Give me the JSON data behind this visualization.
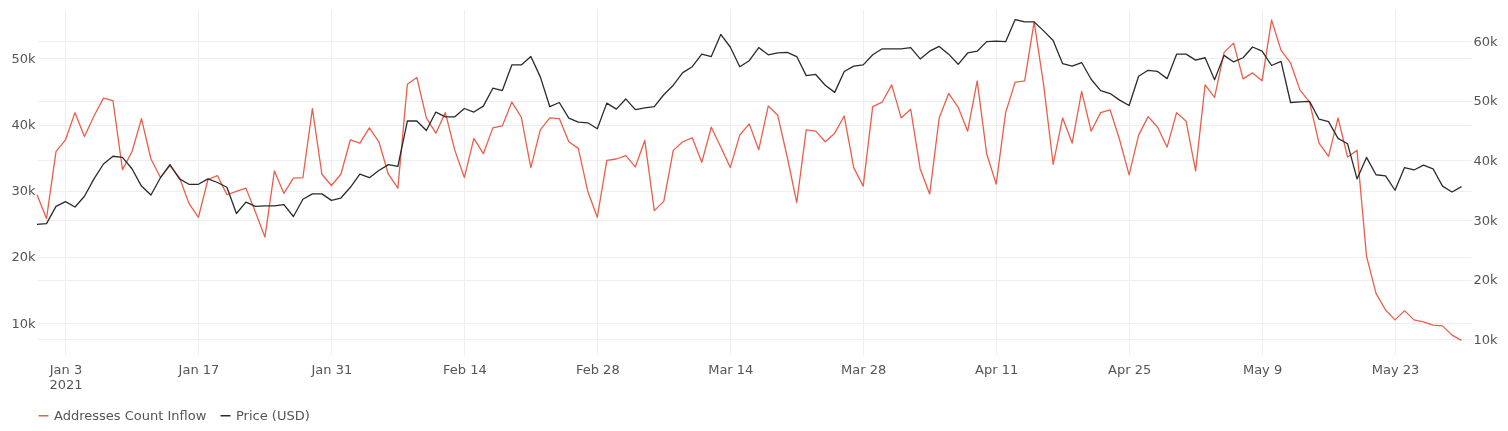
{
  "chart_data": {
    "type": "line",
    "x": [
      "2020-12-31",
      "2021-01-01",
      "2021-01-02",
      "2021-01-03",
      "2021-01-04",
      "2021-01-05",
      "2021-01-06",
      "2021-01-07",
      "2021-01-08",
      "2021-01-09",
      "2021-01-10",
      "2021-01-11",
      "2021-01-12",
      "2021-01-13",
      "2021-01-14",
      "2021-01-15",
      "2021-01-16",
      "2021-01-17",
      "2021-01-18",
      "2021-01-19",
      "2021-01-20",
      "2021-01-21",
      "2021-01-22",
      "2021-01-23",
      "2021-01-24",
      "2021-01-25",
      "2021-01-26",
      "2021-01-27",
      "2021-01-28",
      "2021-01-29",
      "2021-01-30",
      "2021-01-31",
      "2021-02-01",
      "2021-02-02",
      "2021-02-03",
      "2021-02-04",
      "2021-02-05",
      "2021-02-06",
      "2021-02-07",
      "2021-02-08",
      "2021-02-09",
      "2021-02-10",
      "2021-02-11",
      "2021-02-12",
      "2021-02-13",
      "2021-02-14",
      "2021-02-15",
      "2021-02-16",
      "2021-02-17",
      "2021-02-18",
      "2021-02-19",
      "2021-02-20",
      "2021-02-21",
      "2021-02-22",
      "2021-02-23",
      "2021-02-24",
      "2021-02-25",
      "2021-02-26",
      "2021-02-27",
      "2021-02-28",
      "2021-03-01",
      "2021-03-02",
      "2021-03-03",
      "2021-03-04",
      "2021-03-05",
      "2021-03-06",
      "2021-03-07",
      "2021-03-08",
      "2021-03-09",
      "2021-03-10",
      "2021-03-11",
      "2021-03-12",
      "2021-03-13",
      "2021-03-14",
      "2021-03-15",
      "2021-03-16",
      "2021-03-17",
      "2021-03-18",
      "2021-03-19",
      "2021-03-20",
      "2021-03-21",
      "2021-03-22",
      "2021-03-23",
      "2021-03-24",
      "2021-03-25",
      "2021-03-26",
      "2021-03-27",
      "2021-03-28",
      "2021-03-29",
      "2021-03-30",
      "2021-03-31",
      "2021-04-01",
      "2021-04-02",
      "2021-04-03",
      "2021-04-04",
      "2021-04-05",
      "2021-04-06",
      "2021-04-07",
      "2021-04-08",
      "2021-04-09",
      "2021-04-10",
      "2021-04-11",
      "2021-04-12",
      "2021-04-13",
      "2021-04-14",
      "2021-04-15",
      "2021-04-16",
      "2021-04-17",
      "2021-04-18",
      "2021-04-19",
      "2021-04-20",
      "2021-04-21",
      "2021-04-22",
      "2021-04-23",
      "2021-04-24",
      "2021-04-25",
      "2021-04-26",
      "2021-04-27",
      "2021-04-28",
      "2021-04-29",
      "2021-04-30",
      "2021-05-01",
      "2021-05-02",
      "2021-05-03",
      "2021-05-04",
      "2021-05-05",
      "2021-05-06",
      "2021-05-07",
      "2021-05-08",
      "2021-05-09",
      "2021-05-10",
      "2021-05-11",
      "2021-05-12",
      "2021-05-13",
      "2021-05-14",
      "2021-05-15",
      "2021-05-16",
      "2021-05-17",
      "2021-05-18",
      "2021-05-19",
      "2021-05-20",
      "2021-05-21",
      "2021-05-22",
      "2021-05-23",
      "2021-05-24",
      "2021-05-25",
      "2021-05-26",
      "2021-05-27",
      "2021-05-28",
      "2021-05-29",
      "2021-05-30"
    ],
    "series": [
      {
        "name": "Addresses Count Inflow",
        "color": "#e8604c",
        "axis": "y",
        "values": [
          29400,
          25800,
          35900,
          37700,
          41800,
          38200,
          41300,
          44000,
          43600,
          33200,
          35900,
          40900,
          34800,
          32000,
          33800,
          32000,
          28100,
          26000,
          31700,
          32300,
          29400,
          29900,
          30400,
          26800,
          23000,
          33000,
          29600,
          31900,
          32000,
          42400,
          32500,
          30800,
          32500,
          37700,
          37200,
          39500,
          37400,
          32500,
          30400,
          46100,
          47100,
          41000,
          38700,
          41800,
          36100,
          32000,
          37900,
          35600,
          39500,
          39800,
          43400,
          41100,
          33500,
          39200,
          41000,
          40900,
          37400,
          36400,
          29900,
          26000,
          34600,
          34800,
          35300,
          33600,
          37600,
          27000,
          28400,
          36100,
          37400,
          38000,
          34300,
          39600,
          36600,
          33500,
          38400,
          40100,
          36200,
          42800,
          41400,
          35100,
          28200,
          39200,
          39000,
          37400,
          38700,
          41300,
          33500,
          30700,
          42700,
          43400,
          46000,
          41000,
          42300,
          33300,
          29500,
          41000,
          44700,
          42600,
          39000,
          46600,
          35600,
          31000,
          41800,
          46400,
          46600,
          55500,
          46000,
          34000,
          41000,
          37200,
          45000,
          39000,
          41800,
          42200,
          37700,
          32400,
          38400,
          41200,
          39600,
          36600,
          41800,
          40500,
          33000,
          46000,
          44100,
          50900,
          52300,
          46900,
          47800,
          46600,
          55800,
          51200,
          49300,
          45200,
          43400,
          37200,
          35200,
          41000,
          35100,
          36100,
          20100,
          14500,
          12000,
          10500,
          11900,
          10500,
          10200,
          9700,
          9600,
          8200,
          7400
        ]
      },
      {
        "name": "Price (USD)",
        "color": "#2b2b2b",
        "axis": "y2",
        "values": [
          29300,
          29400,
          32300,
          33100,
          32200,
          34000,
          36900,
          39400,
          40700,
          40500,
          38600,
          35700,
          34200,
          37100,
          39300,
          36900,
          36000,
          36000,
          36900,
          36300,
          35500,
          31100,
          33000,
          32300,
          32400,
          32400,
          32600,
          30600,
          33500,
          34400,
          34400,
          33300,
          33700,
          35500,
          37700,
          37100,
          38300,
          39300,
          39000,
          46600,
          46600,
          45000,
          48100,
          47300,
          47300,
          48700,
          48100,
          49100,
          52100,
          51700,
          56000,
          56000,
          57400,
          54000,
          49000,
          49700,
          47100,
          46400,
          46300,
          45300,
          49600,
          48600,
          50300,
          48500,
          48800,
          49000,
          51000,
          52600,
          54700,
          55700,
          57800,
          57400,
          61100,
          59000,
          55700,
          56700,
          58900,
          57700,
          58000,
          58100,
          57400,
          54200,
          54400,
          52600,
          51400,
          54900,
          55800,
          56000,
          57700,
          58700,
          58700,
          58700,
          58900,
          57000,
          58300,
          59100,
          57800,
          56100,
          58000,
          58300,
          59900,
          60000,
          59900,
          63600,
          63200,
          63200,
          61700,
          60100,
          56200,
          55800,
          56400,
          53600,
          51700,
          51200,
          50100,
          49200,
          54100,
          55100,
          54900,
          53700,
          57800,
          57800,
          56800,
          57200,
          53500,
          57600,
          56500,
          57200,
          59000,
          58300,
          55900,
          56600,
          49700,
          49800,
          49900,
          46900,
          46500,
          43700,
          42800,
          36900,
          40500,
          37600,
          37400,
          35000,
          38800,
          38400,
          39200,
          38600,
          35700,
          34700,
          35600
        ]
      }
    ],
    "xlim": [
      "2020-12-31",
      "2021-05-31"
    ],
    "xticks": [
      {
        "value": "2021-01-03",
        "label": "Jan 3\n2021"
      },
      {
        "value": "2021-01-17",
        "label": "Jan 17"
      },
      {
        "value": "2021-01-31",
        "label": "Jan 31"
      },
      {
        "value": "2021-02-14",
        "label": "Feb 14"
      },
      {
        "value": "2021-02-28",
        "label": "Feb 28"
      },
      {
        "value": "2021-03-14",
        "label": "Mar 14"
      },
      {
        "value": "2021-03-28",
        "label": "Mar 28"
      },
      {
        "value": "2021-04-11",
        "label": "Apr 11"
      },
      {
        "value": "2021-04-25",
        "label": "Apr 25"
      },
      {
        "value": "2021-05-09",
        "label": "May 9"
      },
      {
        "value": "2021-05-23",
        "label": "May 23"
      }
    ],
    "ylim": [
      5200,
      57300
    ],
    "yticks": [
      {
        "value": 10000,
        "label": "10k"
      },
      {
        "value": 20000,
        "label": "20k"
      },
      {
        "value": 30000,
        "label": "30k"
      },
      {
        "value": 40000,
        "label": "40k"
      },
      {
        "value": 50000,
        "label": "50k"
      }
    ],
    "y2lim": [
      7400,
      65200
    ],
    "y2ticks": [
      {
        "value": 10000,
        "label": "10k"
      },
      {
        "value": 20000,
        "label": "20k"
      },
      {
        "value": 30000,
        "label": "30k"
      },
      {
        "value": 40000,
        "label": "40k"
      },
      {
        "value": 50000,
        "label": "50k"
      },
      {
        "value": 60000,
        "label": "60k"
      }
    ],
    "grid": true,
    "legend": "bottom",
    "line_style": "solid",
    "marker": "none"
  }
}
